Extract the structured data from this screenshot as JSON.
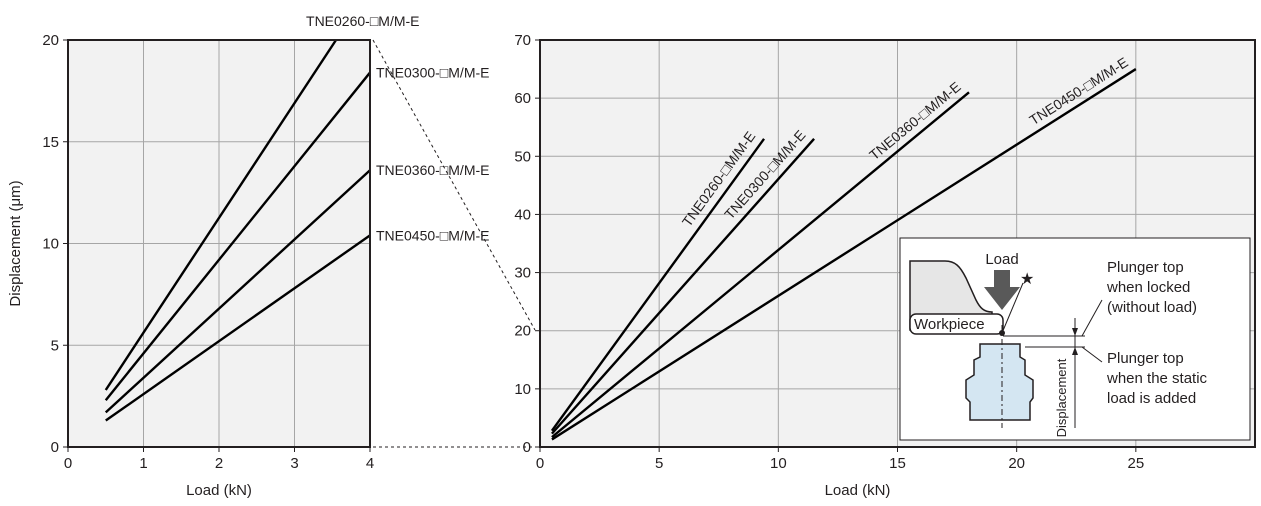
{
  "chart_data": [
    {
      "type": "line",
      "xlabel": "Load (kN)",
      "ylabel": "Displacement (μm)",
      "xlim": [
        0,
        4
      ],
      "ylim": [
        0,
        20
      ],
      "xticks": [
        "0",
        "1",
        "2",
        "3",
        "4"
      ],
      "yticks": [
        "0",
        "5",
        "10",
        "15",
        "20"
      ],
      "grid": true,
      "series": [
        {
          "name": "TNE0260-□M/M-E",
          "x": [
            0.5,
            3.55
          ],
          "y": [
            2.8,
            20
          ]
        },
        {
          "name": "TNE0300-□M/M-E",
          "x": [
            0.5,
            4.0
          ],
          "y": [
            2.3,
            18.4
          ]
        },
        {
          "name": "TNE0360-□M/M-E",
          "x": [
            0.5,
            4.0
          ],
          "y": [
            1.7,
            13.6
          ]
        },
        {
          "name": "TNE0450-□M/M-E",
          "x": [
            0.5,
            4.0
          ],
          "y": [
            1.3,
            10.4
          ]
        }
      ]
    },
    {
      "type": "line",
      "xlabel": "Load (kN)",
      "ylabel": "",
      "xlim": [
        0,
        30
      ],
      "ylim": [
        0,
        70
      ],
      "xticks": [
        "0",
        "5",
        "10",
        "15",
        "20",
        "25"
      ],
      "yticks": [
        "0",
        "10",
        "20",
        "30",
        "40",
        "50",
        "60",
        "70"
      ],
      "grid": true,
      "series": [
        {
          "name": "TNE0260-□M/M-E",
          "x": [
            0.5,
            9.4
          ],
          "y": [
            2.8,
            53
          ]
        },
        {
          "name": "TNE0300-□M/M-E",
          "x": [
            0.5,
            11.5
          ],
          "y": [
            2.3,
            53
          ]
        },
        {
          "name": "TNE0360-□M/M-E",
          "x": [
            0.5,
            18.0
          ],
          "y": [
            1.7,
            61
          ]
        },
        {
          "name": "TNE0450-□M/M-E",
          "x": [
            0.5,
            25.0
          ],
          "y": [
            1.3,
            65
          ]
        }
      ]
    }
  ],
  "inset": {
    "load": "Load",
    "workpiece": "Workpiece",
    "locked_line1": "Plunger top",
    "locked_line2": "when locked",
    "locked_line3": "(without load)",
    "static_line1": "Plunger top",
    "static_line2": "when the static",
    "static_line3": "load is added",
    "displacement": "Displacement",
    "star": "★"
  },
  "colors": {
    "plot_bg": "#f2f2f2",
    "grid": "#a6a6a6",
    "line": "#000000",
    "plunger": "#d4e6f2",
    "arrow": "#595959"
  }
}
